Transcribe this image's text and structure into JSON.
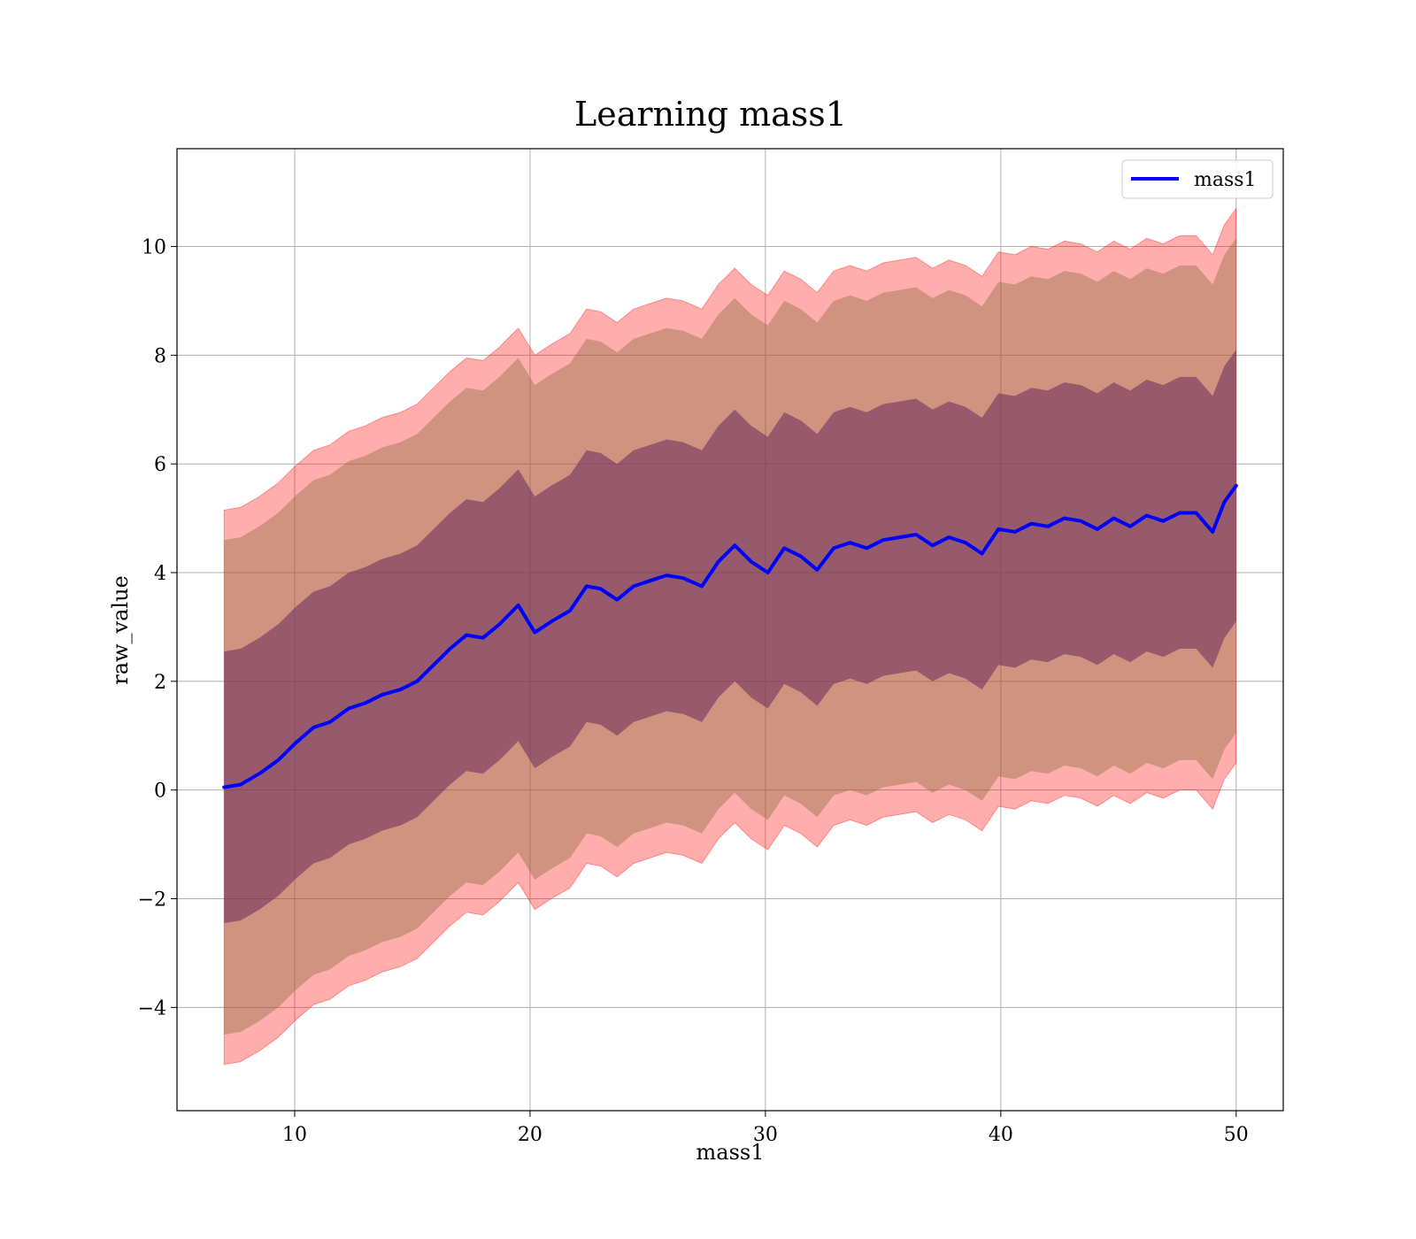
{
  "chart_data": {
    "type": "line",
    "title": "Learning mass1",
    "xlabel": "mass1",
    "ylabel": "raw_value",
    "xlim": [
      5,
      52
    ],
    "ylim": [
      -5.9,
      11.8
    ],
    "x_ticks": [
      10,
      20,
      30,
      40,
      50
    ],
    "y_ticks": [
      -4,
      -2,
      0,
      2,
      4,
      6,
      8,
      10
    ],
    "x_tick_labels": [
      "10",
      "20",
      "30",
      "40",
      "50"
    ],
    "y_tick_labels": [
      "−4",
      "−2",
      "0",
      "2",
      "4",
      "6",
      "8",
      "10"
    ],
    "grid": true,
    "legend": {
      "position": "top-right",
      "entries": [
        "mass1"
      ]
    },
    "colors": {
      "line": "#0000ff",
      "band_outer": "#ff0000",
      "band_middle": "#8c7040",
      "band_inner": "#6a2c5e"
    },
    "series": [
      {
        "name": "mass1",
        "x": [
          7,
          7.7,
          8.5,
          9.3,
          10,
          10.8,
          11.5,
          12.3,
          13,
          13.7,
          14.5,
          15.2,
          15.9,
          16.6,
          17.3,
          18,
          18.7,
          19.5,
          20.2,
          20.9,
          21.7,
          22.4,
          23,
          23.7,
          24.4,
          25.1,
          25.8,
          26.5,
          27.3,
          28,
          28.7,
          29.4,
          30.1,
          30.8,
          31.5,
          32.2,
          32.9,
          33.6,
          34.3,
          35,
          35.7,
          36.4,
          37.1,
          37.8,
          38.5,
          39.2,
          39.9,
          40.6,
          41.3,
          42,
          42.7,
          43.4,
          44.1,
          44.8,
          45.5,
          46.2,
          46.9,
          47.6,
          48.3,
          49,
          49.5,
          50
        ],
        "y": [
          0.05,
          0.1,
          0.3,
          0.55,
          0.85,
          1.15,
          1.25,
          1.5,
          1.6,
          1.75,
          1.85,
          2.0,
          2.3,
          2.6,
          2.85,
          2.8,
          3.05,
          3.4,
          2.9,
          3.1,
          3.3,
          3.75,
          3.7,
          3.5,
          3.75,
          3.85,
          3.95,
          3.9,
          3.75,
          4.2,
          4.5,
          4.2,
          4.0,
          4.45,
          4.3,
          4.05,
          4.45,
          4.55,
          4.45,
          4.6,
          4.65,
          4.7,
          4.5,
          4.65,
          4.55,
          4.35,
          4.8,
          4.75,
          4.9,
          4.85,
          5.0,
          4.95,
          4.8,
          5.0,
          4.85,
          5.05,
          4.95,
          5.1,
          5.1,
          4.75,
          5.3,
          5.6
        ],
        "band_inner_halfwidth": [
          2.5,
          2.5,
          2.5,
          2.5,
          2.5,
          2.5,
          2.5,
          2.5,
          2.5,
          2.5,
          2.5,
          2.5,
          2.5,
          2.5,
          2.5,
          2.5,
          2.5,
          2.5,
          2.5,
          2.5,
          2.5,
          2.5,
          2.5,
          2.5,
          2.5,
          2.5,
          2.5,
          2.5,
          2.5,
          2.5,
          2.5,
          2.5,
          2.5,
          2.5,
          2.5,
          2.5,
          2.5,
          2.5,
          2.5,
          2.5,
          2.5,
          2.5,
          2.5,
          2.5,
          2.5,
          2.5,
          2.5,
          2.5,
          2.5,
          2.5,
          2.5,
          2.5,
          2.5,
          2.5,
          2.5,
          2.5,
          2.5,
          2.5,
          2.5,
          2.5,
          2.5,
          2.5
        ],
        "band_middle_halfwidth": [
          4.55,
          4.55,
          4.55,
          4.55,
          4.55,
          4.55,
          4.55,
          4.55,
          4.55,
          4.55,
          4.55,
          4.55,
          4.55,
          4.55,
          4.55,
          4.55,
          4.55,
          4.55,
          4.55,
          4.55,
          4.55,
          4.55,
          4.55,
          4.55,
          4.55,
          4.55,
          4.55,
          4.55,
          4.55,
          4.55,
          4.55,
          4.55,
          4.55,
          4.55,
          4.55,
          4.55,
          4.55,
          4.55,
          4.55,
          4.55,
          4.55,
          4.55,
          4.55,
          4.55,
          4.55,
          4.55,
          4.55,
          4.55,
          4.55,
          4.55,
          4.55,
          4.55,
          4.55,
          4.55,
          4.55,
          4.55,
          4.55,
          4.55,
          4.55,
          4.55,
          4.55,
          4.55
        ],
        "band_outer_halfwidth": [
          5.1,
          5.1,
          5.1,
          5.1,
          5.1,
          5.1,
          5.1,
          5.1,
          5.1,
          5.1,
          5.1,
          5.1,
          5.1,
          5.1,
          5.1,
          5.1,
          5.1,
          5.1,
          5.1,
          5.1,
          5.1,
          5.1,
          5.1,
          5.1,
          5.1,
          5.1,
          5.1,
          5.1,
          5.1,
          5.1,
          5.1,
          5.1,
          5.1,
          5.1,
          5.1,
          5.1,
          5.1,
          5.1,
          5.1,
          5.1,
          5.1,
          5.1,
          5.1,
          5.1,
          5.1,
          5.1,
          5.1,
          5.1,
          5.1,
          5.1,
          5.1,
          5.1,
          5.1,
          5.1,
          5.1,
          5.1,
          5.1,
          5.1,
          5.1,
          5.1,
          5.1,
          5.1
        ]
      }
    ]
  }
}
